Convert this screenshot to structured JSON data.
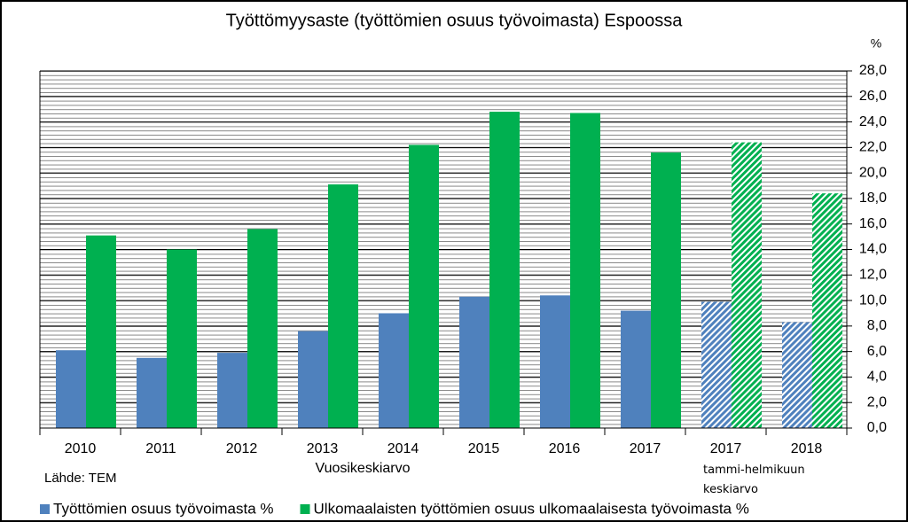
{
  "chart_data": {
    "type": "bar",
    "title": "Työttömyysaste (työttömien osuus työvoimasta) Espoossa",
    "y_axis_unit": "%",
    "source": "Lähde: TEM",
    "categories": [
      "2010",
      "2011",
      "2012",
      "2013",
      "2014",
      "2015",
      "2016",
      "2017",
      "2017",
      "2018"
    ],
    "category_groups": [
      {
        "label": "Vuosikeskiarvo",
        "from": 0,
        "to": 7
      },
      {
        "label": "tammi-helmikuun keskiarvo",
        "from": 8,
        "to": 9
      }
    ],
    "hatched_categories": [
      8,
      9
    ],
    "series": [
      {
        "name": "Työttömien osuus työvoimasta %",
        "color": "#4f81bd",
        "values": [
          6.1,
          5.5,
          5.9,
          7.6,
          9.0,
          10.3,
          10.4,
          9.2,
          9.9,
          8.3
        ]
      },
      {
        "name": "Ulkomaalaisten työttömien osuus ulkomaalaisesta työvoimasta %",
        "color": "#00b050",
        "values": [
          15.1,
          14.0,
          15.6,
          19.1,
          22.2,
          24.8,
          24.7,
          21.6,
          22.4,
          18.4
        ]
      }
    ],
    "ylim": [
      0,
      28
    ],
    "yticks": [
      {
        "value": 0,
        "label": "0,0"
      },
      {
        "value": 2,
        "label": "2,0"
      },
      {
        "value": 4,
        "label": "4,0"
      },
      {
        "value": 6,
        "label": "6,0"
      },
      {
        "value": 8,
        "label": "8,0"
      },
      {
        "value": 10,
        "label": "10,0"
      },
      {
        "value": 12,
        "label": "12,0"
      },
      {
        "value": 14,
        "label": "14,0"
      },
      {
        "value": 16,
        "label": "16,0"
      },
      {
        "value": 18,
        "label": "18,0"
      },
      {
        "value": 20,
        "label": "20,0"
      },
      {
        "value": 22,
        "label": "22,0"
      },
      {
        "value": 24,
        "label": "24,0"
      },
      {
        "value": 26,
        "label": "26,0"
      },
      {
        "value": 28,
        "label": "28,0"
      }
    ],
    "y_axis_side": "right",
    "grid": true,
    "legend_position": "bottom"
  }
}
